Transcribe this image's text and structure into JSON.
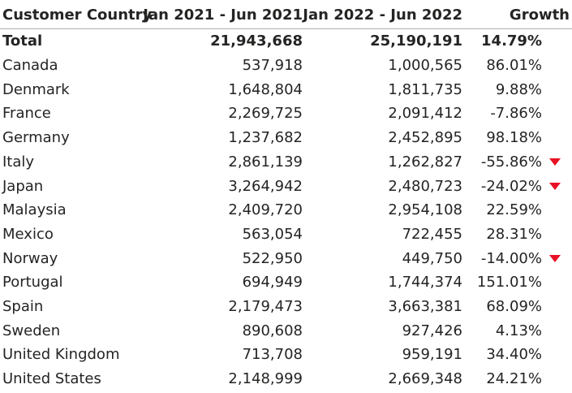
{
  "table": {
    "headers": {
      "country": "Customer Country",
      "period1": "Jan 2021 - Jun 2021",
      "period2": "Jan 2022 - Jun 2022",
      "growth": "Growth"
    },
    "total": {
      "country": "Total",
      "period1": "21,943,668",
      "period2": "25,190,191",
      "growth": "14.79%"
    },
    "rows": [
      {
        "country": "Canada",
        "period1": "537,918",
        "period2": "1,000,565",
        "growth": "86.01%",
        "alert": false
      },
      {
        "country": "Denmark",
        "period1": "1,648,804",
        "period2": "1,811,735",
        "growth": "9.88%",
        "alert": false
      },
      {
        "country": "France",
        "period1": "2,269,725",
        "period2": "2,091,412",
        "growth": "-7.86%",
        "alert": false
      },
      {
        "country": "Germany",
        "period1": "1,237,682",
        "period2": "2,452,895",
        "growth": "98.18%",
        "alert": false
      },
      {
        "country": "Italy",
        "period1": "2,861,139",
        "period2": "1,262,827",
        "growth": "-55.86%",
        "alert": true
      },
      {
        "country": "Japan",
        "period1": "3,264,942",
        "period2": "2,480,723",
        "growth": "-24.02%",
        "alert": true
      },
      {
        "country": "Malaysia",
        "period1": "2,409,720",
        "period2": "2,954,108",
        "growth": "22.59%",
        "alert": false
      },
      {
        "country": "Mexico",
        "period1": "563,054",
        "period2": "722,455",
        "growth": "28.31%",
        "alert": false
      },
      {
        "country": "Norway",
        "period1": "522,950",
        "period2": "449,750",
        "growth": "-14.00%",
        "alert": true
      },
      {
        "country": "Portugal",
        "period1": "694,949",
        "period2": "1,744,374",
        "growth": "151.01%",
        "alert": false
      },
      {
        "country": "Spain",
        "period1": "2,179,473",
        "period2": "3,663,381",
        "growth": "68.09%",
        "alert": false
      },
      {
        "country": "Sweden",
        "period1": "890,608",
        "period2": "927,426",
        "growth": "4.13%",
        "alert": false
      },
      {
        "country": "United Kingdom",
        "period1": "713,708",
        "period2": "959,191",
        "growth": "34.40%",
        "alert": false
      },
      {
        "country": "United States",
        "period1": "2,148,999",
        "period2": "2,669,348",
        "growth": "24.21%",
        "alert": false
      }
    ],
    "alert_icon": "down-triangle-icon",
    "alert_color": "#e81123"
  }
}
